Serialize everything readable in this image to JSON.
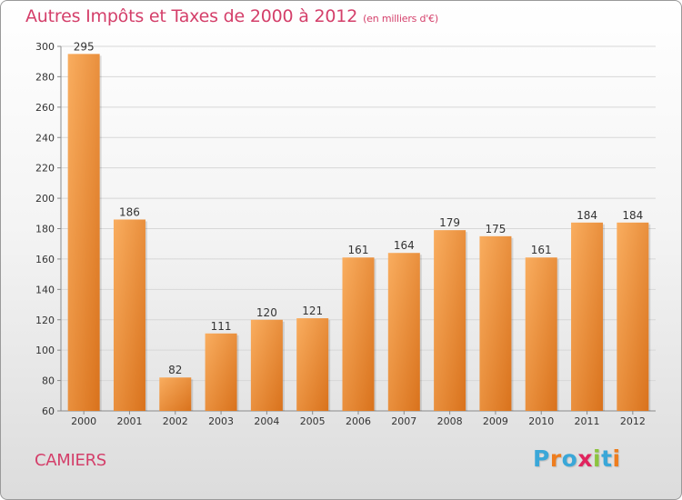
{
  "title": "Autres Impôts et Taxes de 2000 à 2012",
  "subtitle": "(en milliers d'€)",
  "location": "CAMIERS",
  "logo": {
    "letters": [
      "P",
      "r",
      "o",
      "x",
      "i",
      "t",
      "i"
    ],
    "colors": [
      "#3aa7d8",
      "#ee7d1e",
      "#3aa7d8",
      "#e0245e",
      "#8cc43f",
      "#3aa7d8",
      "#ee7d1e"
    ]
  },
  "colors": {
    "bar_light": "#f8a95a",
    "bar_dark": "#dd7a22",
    "title": "#d43f6a"
  },
  "chart_data": {
    "type": "bar",
    "title": "Autres Impôts et Taxes de 2000 à 2012",
    "categories": [
      "2000",
      "2001",
      "2002",
      "2003",
      "2004",
      "2005",
      "2006",
      "2007",
      "2008",
      "2009",
      "2010",
      "2011",
      "2012"
    ],
    "values": [
      295,
      186,
      82,
      111,
      120,
      121,
      161,
      164,
      179,
      175,
      161,
      184,
      184
    ],
    "ylim": [
      60,
      300
    ],
    "yticks": [
      60,
      80,
      100,
      120,
      140,
      160,
      180,
      200,
      220,
      240,
      260,
      280,
      300
    ],
    "grid": true,
    "xlabel": "",
    "ylabel": ""
  }
}
